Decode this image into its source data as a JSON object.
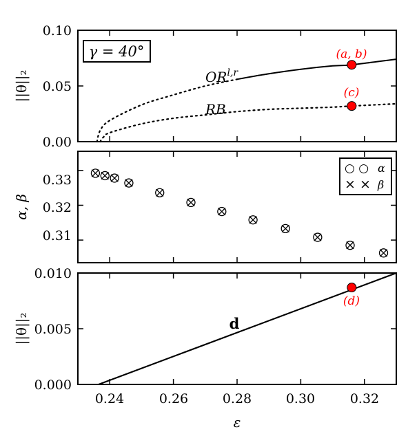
{
  "chart_data": [
    {
      "type": "line",
      "ylabel": "||θ||₂",
      "xlim": [
        0.23,
        0.33
      ],
      "ylim": [
        0.0,
        0.1
      ],
      "yticks": [
        "0.00",
        "0.05",
        "0.10"
      ],
      "inset_label": "γ = 40°",
      "series": [
        {
          "name": "OR^{l,r}",
          "style": "dotted then solid",
          "solid_from_x": 0.28,
          "x": [
            0.236,
            0.237,
            0.24,
            0.25,
            0.26,
            0.27,
            0.28,
            0.29,
            0.3,
            0.31,
            0.316,
            0.33
          ],
          "y": [
            0.0,
            0.01,
            0.019,
            0.033,
            0.042,
            0.05,
            0.056,
            0.061,
            0.065,
            0.068,
            0.069,
            0.074
          ]
        },
        {
          "name": "RB",
          "style": "dotted",
          "x": [
            0.237,
            0.238,
            0.24,
            0.25,
            0.26,
            0.27,
            0.28,
            0.29,
            0.3,
            0.31,
            0.316,
            0.33
          ],
          "y": [
            0.0,
            0.004,
            0.008,
            0.016,
            0.021,
            0.024,
            0.027,
            0.029,
            0.03,
            0.031,
            0.032,
            0.034
          ]
        }
      ],
      "points": [
        {
          "label": "(a, b)",
          "x": 0.316,
          "y": 0.069,
          "color": "#ff0000"
        },
        {
          "label": "(c)",
          "x": 0.316,
          "y": 0.032,
          "color": "#ff0000"
        }
      ]
    },
    {
      "type": "scatter",
      "ylabel": "α, β",
      "xlim": [
        0.23,
        0.33
      ],
      "ylim": [
        0.3035,
        0.3355
      ],
      "yticks": [
        "0.31",
        "0.32",
        "0.33"
      ],
      "legend": [
        {
          "marker": "○ ○",
          "label": "α"
        },
        {
          "marker": "× ×",
          "label": "β"
        }
      ],
      "legend_position": "top-right",
      "series": [
        {
          "name": "α",
          "marker": "circle",
          "x": [
            0.2355,
            0.2385,
            0.2415,
            0.246,
            0.2557,
            0.2655,
            0.2752,
            0.285,
            0.2952,
            0.3053,
            0.3155,
            0.326
          ],
          "y": [
            0.3292,
            0.3285,
            0.3278,
            0.3264,
            0.3236,
            0.3208,
            0.3182,
            0.3158,
            0.3133,
            0.3108,
            0.3085,
            0.3063
          ]
        },
        {
          "name": "β",
          "marker": "x",
          "x": [
            0.2355,
            0.2385,
            0.2415,
            0.246,
            0.2557,
            0.2655,
            0.2752,
            0.285,
            0.2952,
            0.3053,
            0.3155,
            0.326
          ],
          "y": [
            0.3292,
            0.3285,
            0.3278,
            0.3264,
            0.3236,
            0.3208,
            0.3182,
            0.3158,
            0.3133,
            0.3108,
            0.3085,
            0.3063
          ]
        }
      ]
    },
    {
      "type": "line",
      "ylabel": "||θ||₂",
      "xlabel": "ε",
      "xlim": [
        0.23,
        0.33
      ],
      "ylim": [
        0.0,
        0.01
      ],
      "yticks": [
        "0.000",
        "0.005",
        "0.010"
      ],
      "xticks": [
        "0.24",
        "0.26",
        "0.28",
        "0.30",
        "0.32"
      ],
      "series": [
        {
          "name": "d",
          "x": [
            0.2365,
            0.33
          ],
          "y": [
            0.0,
            0.01
          ]
        }
      ],
      "points": [
        {
          "label": "(d)",
          "x": 0.316,
          "y": 0.0087,
          "color": "#ff0000"
        }
      ]
    }
  ]
}
